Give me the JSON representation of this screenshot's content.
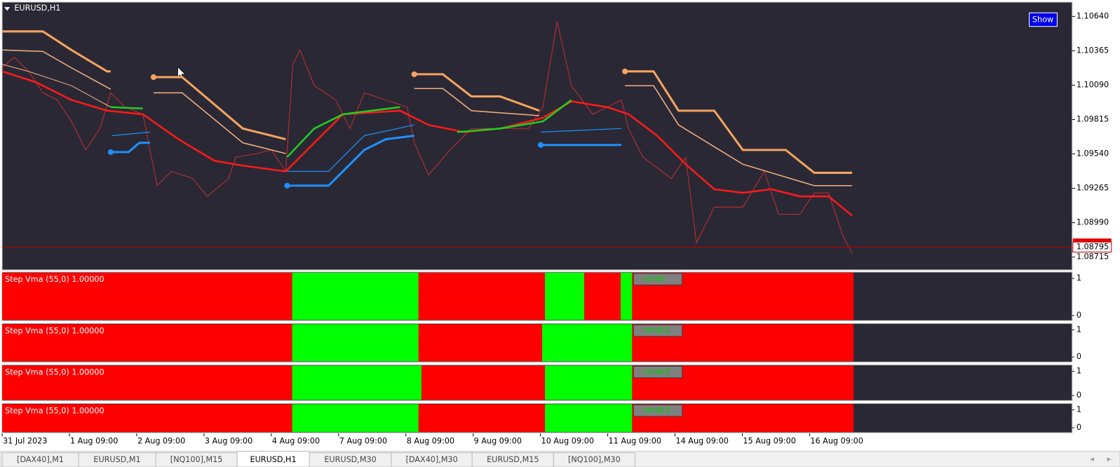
{
  "window": {
    "symbol": "EURUSD,H1",
    "show_button": "Show"
  },
  "price_axis": {
    "ticks": [
      {
        "value": 1.1064,
        "label": "1.10640"
      },
      {
        "value": 1.10365,
        "label": "1.10365"
      },
      {
        "value": 1.1009,
        "label": "1.10090"
      },
      {
        "value": 1.09815,
        "label": "1.09815"
      },
      {
        "value": 1.0954,
        "label": "1.09540"
      },
      {
        "value": 1.09265,
        "label": "1.09265"
      },
      {
        "value": 1.0899,
        "label": "1.08990"
      },
      {
        "value": 1.08715,
        "label": "1.08715"
      }
    ],
    "current": {
      "value": 1.08795,
      "label": "1.08795"
    }
  },
  "subwindows": [
    {
      "label": "Step Vma  (55,0) 1.00000",
      "tag": "vmah",
      "axis_ticks": [
        1,
        0
      ]
    },
    {
      "label": "Step Vma  (55,0) 1.00000",
      "tag": "vmah1",
      "axis_ticks": [
        1,
        0
      ]
    },
    {
      "label": "Step Vma  (55,0) 1.00000",
      "tag": "vmah2",
      "axis_ticks": [
        1,
        0
      ]
    },
    {
      "label": "Step Vma  (55,0) 1.00000",
      "tag": "vmah3",
      "axis_ticks": [
        1,
        0
      ]
    }
  ],
  "time_axis": [
    "31 Jul 2023",
    "1 Aug 09:00",
    "2 Aug 09:00",
    "3 Aug 09:00",
    "4 Aug 09:00",
    "7 Aug 09:00",
    "8 Aug 09:00",
    "9 Aug 09:00",
    "10 Aug 09:00",
    "11 Aug 09:00",
    "14 Aug 09:00",
    "15 Aug 09:00",
    "16 Aug 09:00"
  ],
  "tabs": {
    "items": [
      "[DAX40],M1",
      "EURUSD,M1",
      "[NQ100],M15",
      "EURUSD,H1",
      "EURUSD,M30",
      "[DAX40],M30",
      "EURUSD,M15",
      "[NQ100],M30"
    ],
    "active": 3
  }
}
